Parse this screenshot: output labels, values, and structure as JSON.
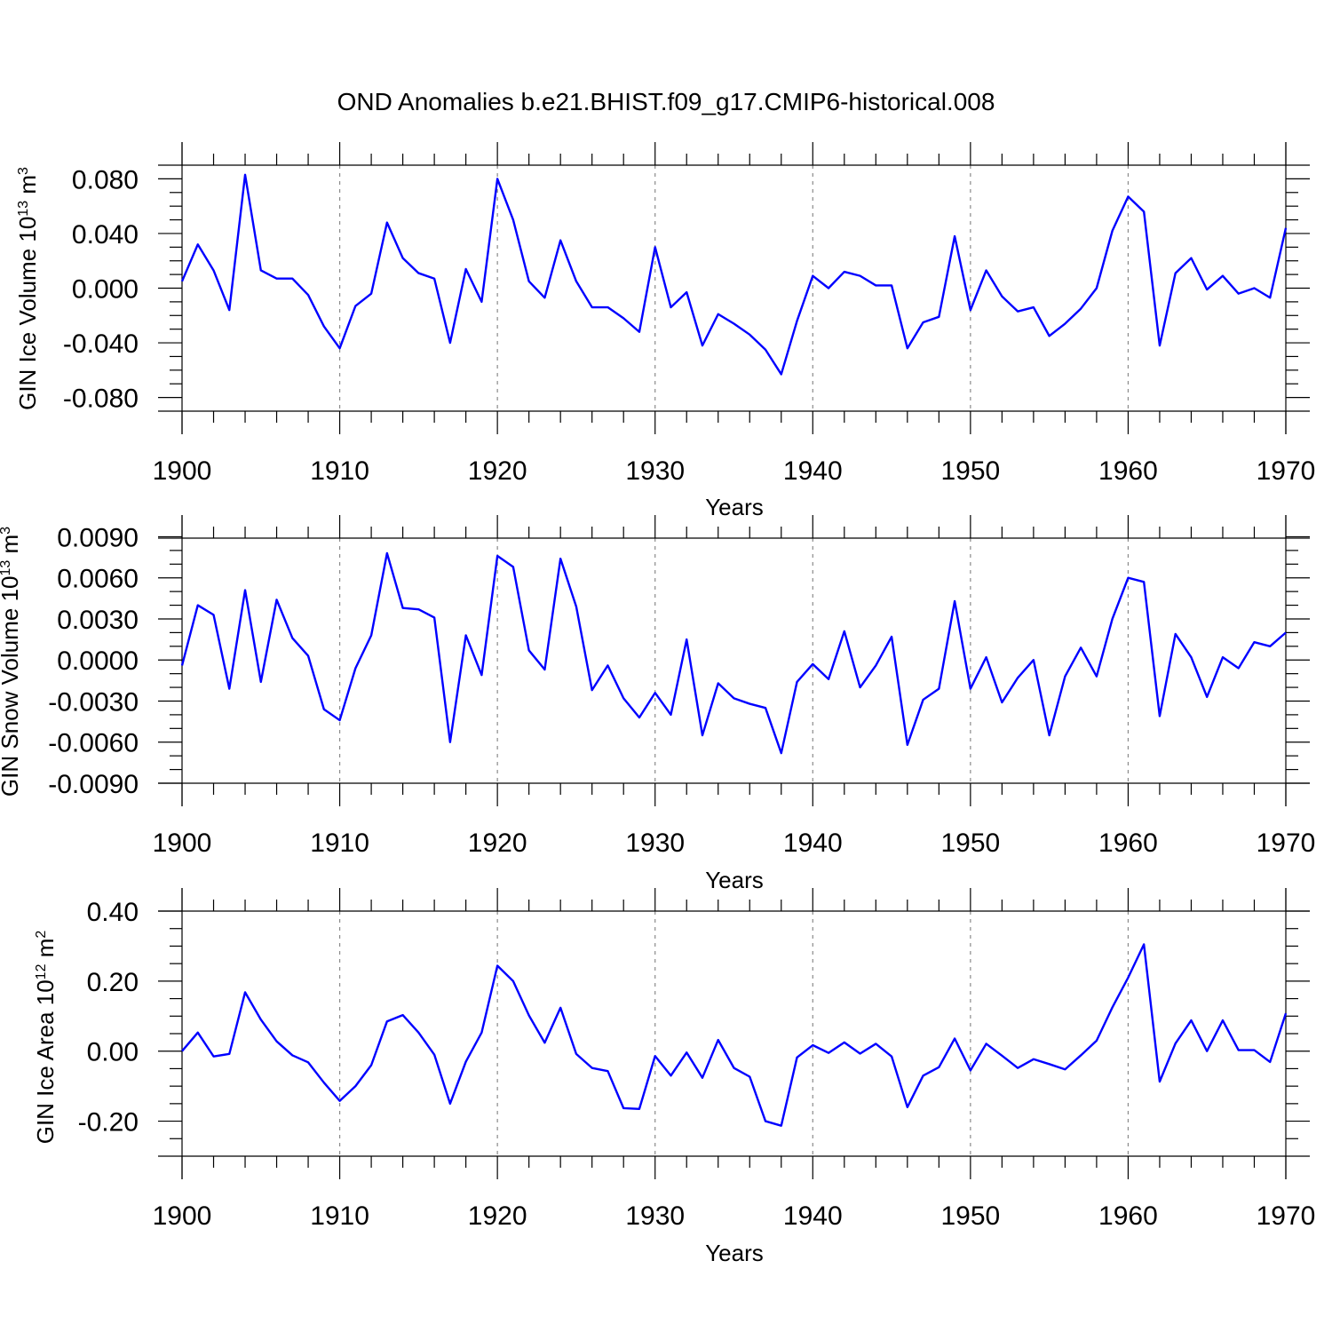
{
  "title": "OND Anomalies b.e21.BHIST.f09_g17.CMIP6-historical.008",
  "chart_data": [
    {
      "type": "line",
      "title": "OND Anomalies b.e21.BHIST.f09_g17.CMIP6-historical.008",
      "ylabel_main": "GIN Ice Volume 10",
      "ylabel_exp": "13",
      "ylabel_unit": "m",
      "ylabel_unit_exp": "3",
      "xlabel": "Years",
      "xlim": [
        1900,
        1970
      ],
      "ylim": [
        -0.09,
        0.09
      ],
      "grid": "dashed vertical lines at major x ticks",
      "x_ticks": [
        1900,
        1910,
        1920,
        1930,
        1940,
        1950,
        1960,
        1970
      ],
      "x_tick_labels": [
        "1900",
        "1910",
        "1920",
        "1930",
        "1940",
        "1950",
        "1960",
        "1970"
      ],
      "y_ticks": [
        -0.08,
        -0.04,
        0.0,
        0.04,
        0.08
      ],
      "y_tick_labels": [
        "-0.080",
        "-0.040",
        "0.000",
        "0.040",
        "0.080"
      ],
      "y_minor_step": 0.01,
      "series": [
        {
          "name": "GIN Ice Volume",
          "color": "#0000ff",
          "x_start": 1900,
          "values": [
            0.005,
            0.032,
            0.013,
            -0.016,
            0.083,
            0.013,
            0.007,
            0.007,
            -0.005,
            -0.028,
            -0.044,
            -0.013,
            -0.004,
            0.048,
            0.022,
            0.011,
            0.007,
            -0.04,
            0.014,
            -0.01,
            0.08,
            0.05,
            0.005,
            -0.007,
            0.035,
            0.005,
            -0.014,
            -0.014,
            -0.022,
            -0.032,
            0.03,
            -0.014,
            -0.003,
            -0.042,
            -0.019,
            -0.026,
            -0.034,
            -0.045,
            -0.063,
            -0.024,
            0.009,
            0.0,
            0.012,
            0.009,
            0.002,
            0.002,
            -0.044,
            -0.025,
            -0.021,
            0.038,
            -0.016,
            0.013,
            -0.006,
            -0.017,
            -0.014,
            -0.035,
            -0.026,
            -0.015,
            0.0,
            0.042,
            0.067,
            0.056,
            -0.042,
            0.011,
            0.022,
            -0.001,
            0.009,
            -0.004,
            0.0,
            -0.007,
            0.044
          ]
        }
      ]
    },
    {
      "type": "line",
      "ylabel_main": "GIN Snow Volume 10",
      "ylabel_exp": "13",
      "ylabel_unit": "m",
      "ylabel_unit_exp": "3",
      "xlabel": "Years",
      "xlim": [
        1900,
        1970
      ],
      "ylim": [
        -0.009,
        0.0089
      ],
      "grid": "dashed vertical lines at major x ticks",
      "x_ticks": [
        1900,
        1910,
        1920,
        1930,
        1940,
        1950,
        1960,
        1970
      ],
      "x_tick_labels": [
        "1900",
        "1910",
        "1920",
        "1930",
        "1940",
        "1950",
        "1960",
        "1970"
      ],
      "y_ticks": [
        -0.009,
        -0.006,
        -0.003,
        0.0,
        0.003,
        0.006,
        0.009
      ],
      "y_tick_labels": [
        "-0.0090",
        "-0.0060",
        "-0.0030",
        "0.0000",
        "0.0030",
        "0.0060",
        "0.0090"
      ],
      "y_minor_step": 0.001,
      "series": [
        {
          "name": "GIN Snow Volume",
          "color": "#0000ff",
          "x_start": 1900,
          "values": [
            -0.0004,
            0.004,
            0.0033,
            -0.0021,
            0.0051,
            -0.0016,
            0.0044,
            0.0016,
            0.0003,
            -0.0036,
            -0.0044,
            -0.0006,
            0.0018,
            0.0078,
            0.0038,
            0.0037,
            0.0031,
            -0.006,
            0.0018,
            -0.0011,
            0.0076,
            0.0068,
            0.0007,
            -0.0007,
            0.0074,
            0.0039,
            -0.0022,
            -0.0004,
            -0.0028,
            -0.0042,
            -0.0024,
            -0.004,
            0.0015,
            -0.0055,
            -0.0017,
            -0.0028,
            -0.0032,
            -0.0035,
            -0.0068,
            -0.0016,
            -0.0003,
            -0.0014,
            0.0021,
            -0.002,
            -0.0004,
            0.0017,
            -0.0062,
            -0.0029,
            -0.0021,
            0.0043,
            -0.0021,
            0.0002,
            -0.0031,
            -0.0013,
            0.0,
            -0.0055,
            -0.0012,
            0.0009,
            -0.0012,
            0.003,
            0.006,
            0.0057,
            -0.0041,
            0.0019,
            0.0002,
            -0.0027,
            0.0002,
            -0.0006,
            0.0013,
            0.001,
            0.002
          ]
        }
      ]
    },
    {
      "type": "line",
      "ylabel_main": "GIN Ice Area 10",
      "ylabel_exp": "12",
      "ylabel_unit": "m",
      "ylabel_unit_exp": "2",
      "xlabel": "Years",
      "xlim": [
        1900,
        1970
      ],
      "ylim": [
        -0.3,
        0.4
      ],
      "grid": "dashed vertical lines at major x ticks",
      "x_ticks": [
        1900,
        1910,
        1920,
        1930,
        1940,
        1950,
        1960,
        1970
      ],
      "x_tick_labels": [
        "1900",
        "1910",
        "1920",
        "1930",
        "1940",
        "1950",
        "1960",
        "1970"
      ],
      "y_ticks": [
        -0.2,
        0.0,
        0.2,
        0.4
      ],
      "y_tick_labels": [
        "-0.20",
        "0.00",
        "0.20",
        "0.40"
      ],
      "y_minor_step": 0.05,
      "series": [
        {
          "name": "GIN Ice Area",
          "color": "#0000ff",
          "x_start": 1900,
          "values": [
            0.0,
            0.053,
            -0.015,
            -0.008,
            0.168,
            0.09,
            0.028,
            -0.012,
            -0.032,
            -0.09,
            -0.142,
            -0.1,
            -0.04,
            0.085,
            0.103,
            0.053,
            -0.01,
            -0.15,
            -0.03,
            0.053,
            0.244,
            0.2,
            0.102,
            0.024,
            0.124,
            -0.008,
            -0.048,
            -0.057,
            -0.163,
            -0.165,
            -0.014,
            -0.07,
            -0.004,
            -0.076,
            0.032,
            -0.048,
            -0.073,
            -0.2,
            -0.213,
            -0.018,
            0.017,
            -0.005,
            0.025,
            -0.007,
            0.021,
            -0.015,
            -0.16,
            -0.07,
            -0.046,
            0.036,
            -0.055,
            0.021,
            -0.013,
            -0.048,
            -0.023,
            -0.037,
            -0.052,
            -0.012,
            0.03,
            0.125,
            0.21,
            0.305,
            -0.087,
            0.022,
            0.088,
            0.0,
            0.088,
            0.003,
            0.003,
            -0.031,
            0.108
          ]
        }
      ]
    }
  ]
}
